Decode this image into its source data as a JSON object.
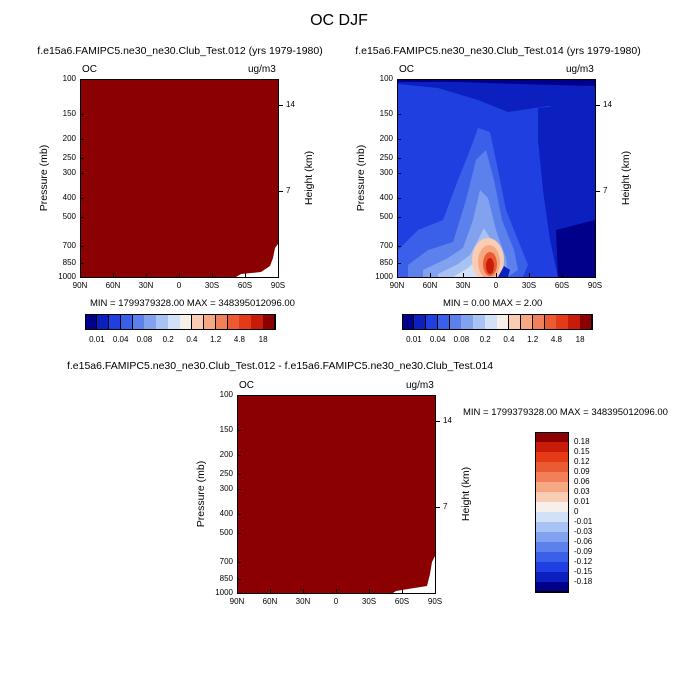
{
  "title": "OC DJF",
  "colors": {
    "fill": "#8b0000",
    "palette": [
      "#00008b",
      "#0c1fbf",
      "#1f3fe0",
      "#3a5fe8",
      "#5c80ec",
      "#82a2f0",
      "#a9c2f4",
      "#d2e0f8",
      "#f7f0ea",
      "#f9cdb3",
      "#f6a883",
      "#f1805a",
      "#ec5a34",
      "#e43a18",
      "#c81c08",
      "#8b0000"
    ]
  },
  "top_left": {
    "title": "f.e15a6.FAMIPC5.ne30_ne30.Club_Test.012 (yrs 1979-1980)",
    "var": "OC",
    "units": "ug/m3",
    "stats": "MIN = 1799379328.00  MAX = 348395012096.00"
  },
  "top_right": {
    "title": "f.e15a6.FAMIPC5.ne30_ne30.Club_Test.014 (yrs 1979-1980)",
    "var": "OC",
    "units": "ug/m3",
    "stats": "MIN =  0.00  MAX =  2.00"
  },
  "bottom": {
    "title": "f.e15a6.FAMIPC5.ne30_ne30.Club_Test.012 - f.e15a6.FAMIPC5.ne30_ne30.Club_Test.014",
    "var": "OC",
    "units": "ug/m3",
    "stats": "MIN = 1799379328.00  MAX = 348395012096.00"
  },
  "horizontal_colorbar": {
    "labels": [
      "0.01",
      "0.04",
      "0.08",
      "0.2",
      "0.4",
      "1.2",
      "4.8",
      "18"
    ]
  },
  "vertical_colorbar": {
    "labels": [
      "0.18",
      "0.15",
      "0.12",
      "0.09",
      "0.06",
      "0.03",
      "0.01",
      "0",
      "-0.01",
      "-0.03",
      "-0.06",
      "-0.09",
      "-0.12",
      "-0.15",
      "-0.18"
    ]
  },
  "chart_data": {
    "type": "heatmap",
    "x_tick_labels": [
      "90N",
      "60N",
      "30N",
      "0",
      "30S",
      "60S",
      "90S"
    ],
    "y_tick_labels": [
      "100",
      "150",
      "200",
      "250",
      "300",
      "400",
      "500",
      "700",
      "850",
      "1000"
    ],
    "y_tick_values": [
      100,
      150,
      200,
      250,
      300,
      400,
      500,
      700,
      850,
      1000
    ],
    "right_tick_labels": [
      "14",
      "7"
    ],
    "right_tick_values": [
      14,
      7
    ],
    "ylabel": "Pressure (mb)",
    "right_label": "Height (km)",
    "y_scale": "log",
    "ylim": [
      1000,
      100
    ],
    "xlim": [
      "90N",
      "90S"
    ]
  }
}
